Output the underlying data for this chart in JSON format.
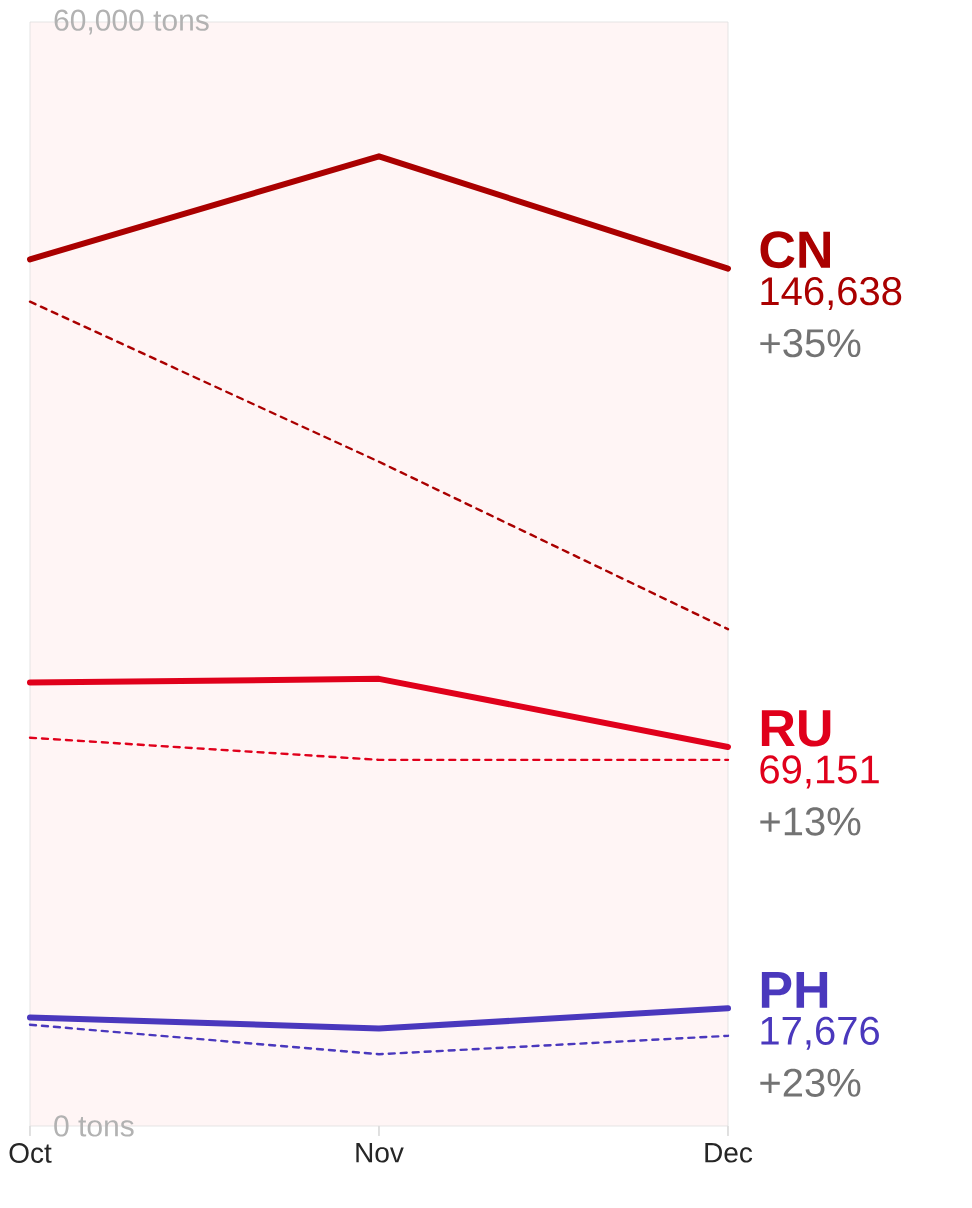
{
  "chart_data": {
    "type": "line",
    "categories": [
      "Oct",
      "Nov",
      "Dec"
    ],
    "ylim": [
      0,
      60000
    ],
    "yticks": [
      {
        "value": 0,
        "label": "0 tons"
      },
      {
        "value": 60000,
        "label": "60,000 tons"
      }
    ],
    "grid": false,
    "legend": false,
    "series": [
      {
        "name": "CN",
        "color": "#aa0000",
        "values": [
          47100,
          52700,
          46600
        ]
      },
      {
        "color": "#aa0000",
        "line_style": "dashed",
        "values": [
          44800,
          36100,
          27000
        ]
      },
      {
        "name": "RU",
        "color": "#e0001b",
        "values": [
          24100,
          24300,
          20600
        ]
      },
      {
        "color": "#e0001b",
        "line_style": "dashed",
        "values": [
          21100,
          19900,
          19900
        ]
      },
      {
        "name": "PH",
        "color": "#4a38bd",
        "values": [
          5900,
          5300,
          6400
        ]
      },
      {
        "color": "#4a38bd",
        "line_style": "dashed",
        "values": [
          5500,
          3900,
          4900
        ]
      }
    ],
    "annotations": [
      {
        "text": "146,638",
        "x": "Dec",
        "y": 46600
      },
      {
        "text": "+35%",
        "x": "Dec",
        "y": 46600
      },
      {
        "text": "69,151",
        "x": "Dec",
        "y": 20600
      },
      {
        "text": "+13%",
        "x": "Dec",
        "y": 20600
      },
      {
        "text": "17,676",
        "x": "Dec",
        "y": 6400
      },
      {
        "text": "+23%",
        "x": "Dec",
        "y": 6400
      }
    ]
  }
}
